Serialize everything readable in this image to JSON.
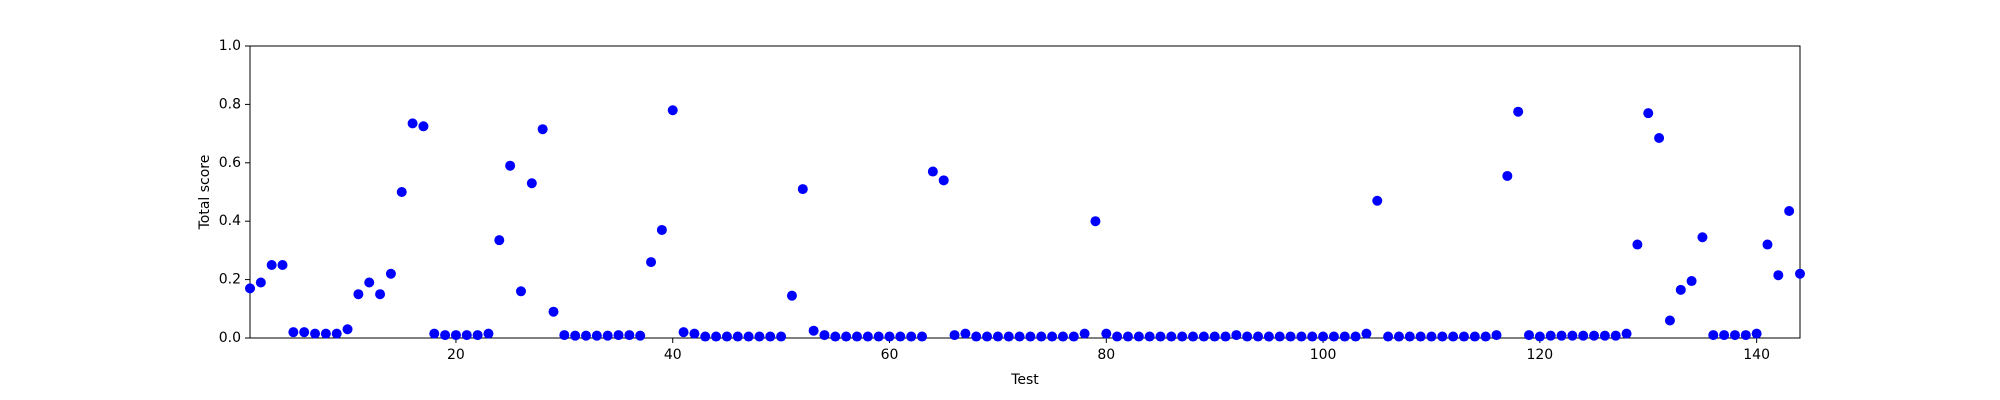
{
  "chart_data": {
    "type": "scatter",
    "xlabel": "Test",
    "ylabel": "Total score",
    "color": "#0000ff",
    "x": [
      1,
      2,
      3,
      4,
      5,
      6,
      7,
      8,
      9,
      10,
      11,
      12,
      13,
      14,
      15,
      16,
      17,
      18,
      19,
      20,
      21,
      22,
      23,
      24,
      25,
      26,
      27,
      28,
      29,
      30,
      31,
      32,
      33,
      34,
      35,
      36,
      37,
      38,
      39,
      40,
      41,
      42,
      43,
      44,
      45,
      46,
      47,
      48,
      49,
      50,
      51,
      52,
      53,
      54,
      55,
      56,
      57,
      58,
      59,
      60,
      61,
      62,
      63,
      64,
      65,
      66,
      67,
      68,
      69,
      70,
      71,
      72,
      73,
      74,
      75,
      76,
      77,
      78,
      79,
      80,
      81,
      82,
      83,
      84,
      85,
      86,
      87,
      88,
      89,
      90,
      91,
      92,
      93,
      94,
      95,
      96,
      97,
      98,
      99,
      100,
      101,
      102,
      103,
      104,
      105,
      106,
      107,
      108,
      109,
      110,
      111,
      112,
      113,
      114,
      115,
      116,
      117,
      118,
      119,
      120,
      121,
      122,
      123,
      124,
      125,
      126,
      127,
      128,
      129,
      130,
      131,
      132,
      133,
      134,
      135,
      136,
      137,
      138,
      139,
      140,
      141,
      142,
      143,
      144
    ],
    "values": [
      0.17,
      0.19,
      0.25,
      0.25,
      0.02,
      0.02,
      0.015,
      0.015,
      0.015,
      0.03,
      0.15,
      0.19,
      0.15,
      0.22,
      0.5,
      0.735,
      0.725,
      0.015,
      0.01,
      0.01,
      0.01,
      0.01,
      0.015,
      0.335,
      0.59,
      0.16,
      0.53,
      0.715,
      0.09,
      0.01,
      0.008,
      0.008,
      0.008,
      0.008,
      0.01,
      0.01,
      0.008,
      0.26,
      0.37,
      0.78,
      0.02,
      0.015,
      0.005,
      0.005,
      0.005,
      0.005,
      0.005,
      0.005,
      0.005,
      0.005,
      0.145,
      0.51,
      0.025,
      0.01,
      0.005,
      0.005,
      0.005,
      0.005,
      0.005,
      0.005,
      0.005,
      0.005,
      0.005,
      0.57,
      0.54,
      0.01,
      0.015,
      0.005,
      0.005,
      0.005,
      0.005,
      0.005,
      0.005,
      0.005,
      0.005,
      0.005,
      0.005,
      0.015,
      0.4,
      0.015,
      0.005,
      0.005,
      0.005,
      0.005,
      0.005,
      0.005,
      0.005,
      0.005,
      0.005,
      0.005,
      0.005,
      0.01,
      0.005,
      0.005,
      0.005,
      0.005,
      0.005,
      0.005,
      0.005,
      0.005,
      0.005,
      0.005,
      0.005,
      0.015,
      0.47,
      0.005,
      0.005,
      0.005,
      0.005,
      0.005,
      0.005,
      0.005,
      0.005,
      0.005,
      0.005,
      0.01,
      0.555,
      0.775,
      0.01,
      0.005,
      0.008,
      0.008,
      0.008,
      0.008,
      0.008,
      0.008,
      0.008,
      0.015,
      0.32,
      0.77,
      0.685,
      0.06,
      0.165,
      0.195,
      0.345,
      0.01,
      0.01,
      0.01,
      0.01,
      0.015,
      0.32,
      0.215,
      0.435,
      0.22
    ],
    "xlim": [
      1,
      144
    ],
    "xticks": [
      20,
      40,
      60,
      80,
      100,
      120,
      140
    ],
    "ylim": [
      0,
      1
    ],
    "yticks": [
      {
        "value": 0,
        "label": "0.0"
      },
      0.2,
      0.4,
      0.6,
      0.8,
      {
        "value": 1,
        "label": "1.0"
      }
    ]
  }
}
